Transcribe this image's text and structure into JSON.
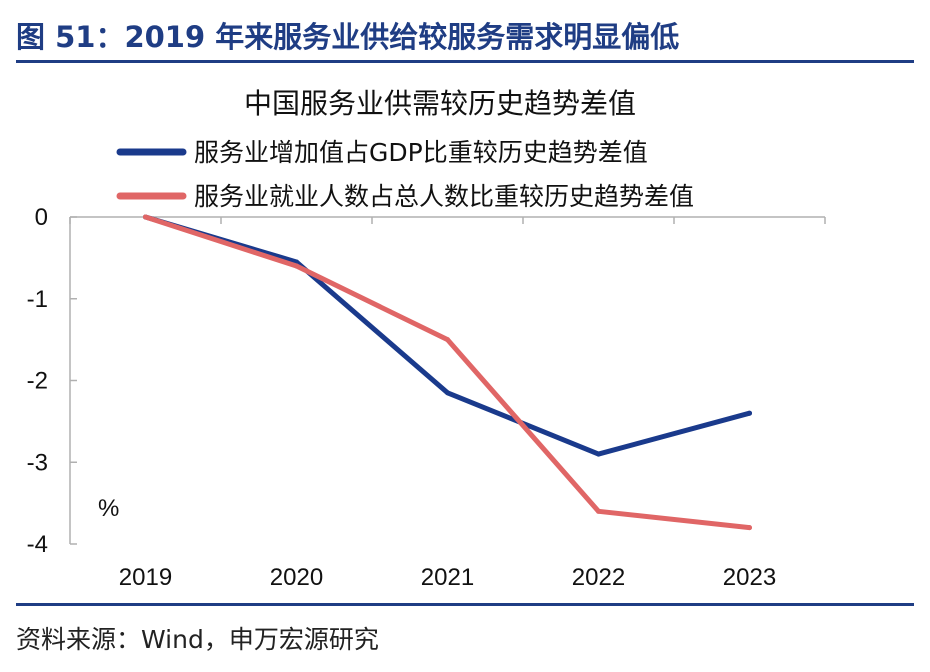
{
  "figure": {
    "title": "图 51：2019 年来服务业供给较服务需求明显偏低",
    "source": "资料来源：Wind，申万宏源研究",
    "accent_color": "#1F3D84"
  },
  "chart_data": {
    "type": "line",
    "title": "中国服务业供需较历史趋势差值",
    "ylabel": "%",
    "xlabel": "",
    "categories": [
      "2019",
      "2020",
      "2021",
      "2022",
      "2023"
    ],
    "ylim": [
      -4,
      0
    ],
    "yticks": [
      0,
      -1,
      -2,
      -3,
      -4
    ],
    "ytick_labels": [
      "0",
      "-1",
      "-2",
      "-3",
      "-4"
    ],
    "grid": false,
    "legend_position": "top",
    "series": [
      {
        "name": "服务业增加值占GDP比重较历史趋势差值",
        "color": "#1A3A8C",
        "values": [
          0,
          -0.55,
          -2.15,
          -2.9,
          -2.4
        ]
      },
      {
        "name": "服务业就业人数占总人数比重较历史趋势差值",
        "color": "#E06666",
        "values": [
          0,
          -0.6,
          -1.5,
          -3.6,
          -3.8
        ]
      }
    ]
  }
}
